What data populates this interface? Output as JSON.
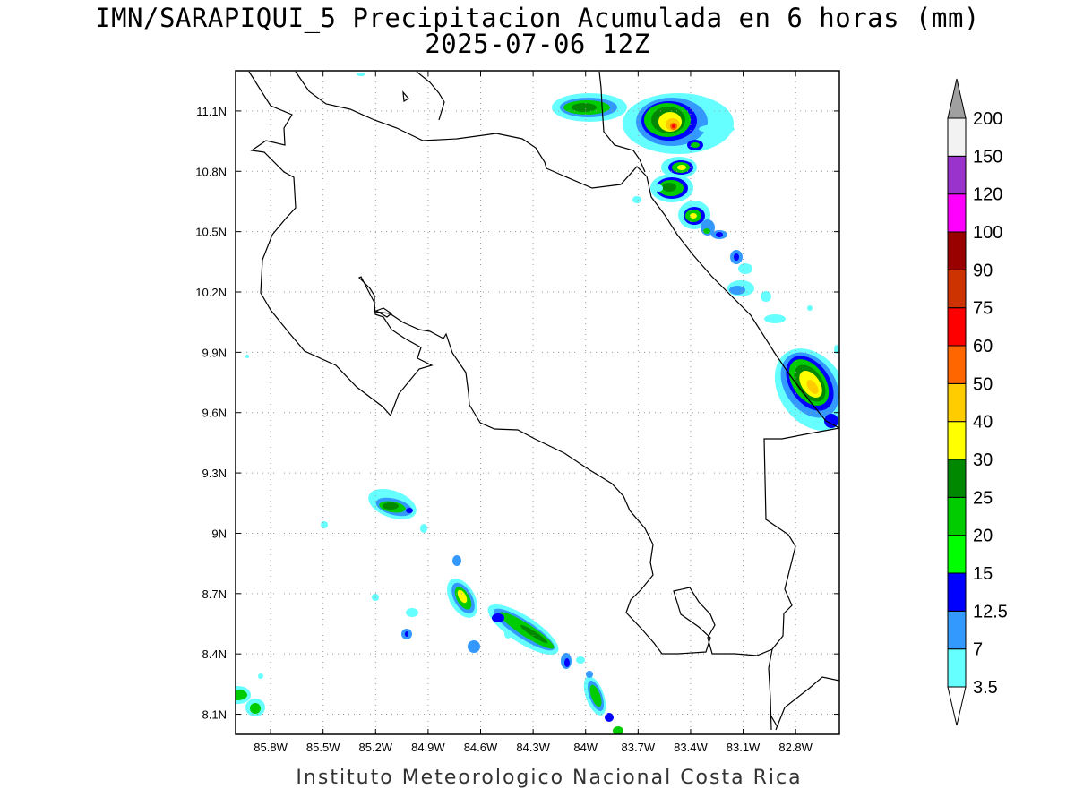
{
  "title": "IMN/SARAPIQUI_5 Precipitacion Acumulada en 6 horas (mm)",
  "subtitle": "2025-07-06 12Z",
  "credit": "Instituto Meteorologico Nacional Costa Rica",
  "map": {
    "lon_range": [
      -86.0,
      -82.55
    ],
    "lat_range": [
      8.0,
      11.3
    ],
    "x_ticks": [
      {
        "label": "85.8W",
        "value": -85.8
      },
      {
        "label": "85.5W",
        "value": -85.5
      },
      {
        "label": "85.2W",
        "value": -85.2
      },
      {
        "label": "84.9W",
        "value": -84.9
      },
      {
        "label": "84.6W",
        "value": -84.6
      },
      {
        "label": "84.3W",
        "value": -84.3
      },
      {
        "label": "84W",
        "value": -84.0
      },
      {
        "label": "83.7W",
        "value": -83.7
      },
      {
        "label": "83.4W",
        "value": -83.4
      },
      {
        "label": "83.1W",
        "value": -83.1
      },
      {
        "label": "82.8W",
        "value": -82.8
      }
    ],
    "y_ticks": [
      {
        "label": "11.1N",
        "value": 11.1
      },
      {
        "label": "10.8N",
        "value": 10.8
      },
      {
        "label": "10.5N",
        "value": 10.5
      },
      {
        "label": "10.2N",
        "value": 10.2
      },
      {
        "label": "9.9N",
        "value": 9.9
      },
      {
        "label": "9.6N",
        "value": 9.6
      },
      {
        "label": "9.3N",
        "value": 9.3
      },
      {
        "label": "9N",
        "value": 9.0
      },
      {
        "label": "8.7N",
        "value": 8.7
      },
      {
        "label": "8.4N",
        "value": 8.4
      },
      {
        "label": "8.1N",
        "value": 8.1
      }
    ],
    "grid": "dotted"
  },
  "colorbar": {
    "labels": [
      "3.5",
      "7",
      "12.5",
      "15",
      "20",
      "25",
      "30",
      "40",
      "50",
      "60",
      "75",
      "90",
      "100",
      "120",
      "150",
      "200"
    ],
    "colors": [
      "#ffffff",
      "#66ffff",
      "#3399ff",
      "#0000ff",
      "#00ff00",
      "#00cc00",
      "#008800",
      "#ffff00",
      "#ffcc00",
      "#ff6600",
      "#ff0000",
      "#cc3300",
      "#990000",
      "#ff00ff",
      "#9933cc",
      "#f2f2f2"
    ],
    "top_arrow_color": "#a0a0a0",
    "bottom_arrow_color": "#ffffff"
  },
  "chart_data": {
    "type": "heatmap",
    "title": "IMN/SARAPIQUI_5 Precipitacion Acumulada en 6 horas (mm)",
    "subtitle": "2025-07-06 12Z",
    "xlabel": "",
    "ylabel": "",
    "xlim": [
      -86.0,
      -82.55
    ],
    "ylim": [
      8.0,
      11.3
    ],
    "units": "mm",
    "levels": [
      3.5,
      7,
      12.5,
      15,
      20,
      25,
      30,
      40,
      50,
      60,
      75,
      90,
      100,
      120,
      150,
      200
    ],
    "cells": [
      {
        "lon": -83.94,
        "lat": 11.11,
        "max": 25
      },
      {
        "lon": -83.45,
        "lat": 11.05,
        "max": 75
      },
      {
        "lon": -83.41,
        "lat": 10.82,
        "max": 40
      },
      {
        "lon": -83.44,
        "lat": 10.74,
        "max": 30
      },
      {
        "lon": -83.33,
        "lat": 10.58,
        "max": 40
      },
      {
        "lon": -83.27,
        "lat": 10.51,
        "max": 20
      },
      {
        "lon": -83.12,
        "lat": 10.38,
        "max": 15
      },
      {
        "lon": -83.15,
        "lat": 10.24,
        "max": 7
      },
      {
        "lon": -82.79,
        "lat": 9.8,
        "max": 40
      },
      {
        "lon": -85.08,
        "lat": 9.14,
        "max": 25
      },
      {
        "lon": -84.68,
        "lat": 8.72,
        "max": 40
      },
      {
        "lon": -84.35,
        "lat": 8.54,
        "max": 30
      },
      {
        "lon": -84.22,
        "lat": 8.45,
        "max": 25
      },
      {
        "lon": -83.9,
        "lat": 8.18,
        "max": 30
      },
      {
        "lon": -85.96,
        "lat": 8.17,
        "max": 25
      },
      {
        "lon": -85.88,
        "lat": 8.12,
        "max": 20
      }
    ]
  }
}
